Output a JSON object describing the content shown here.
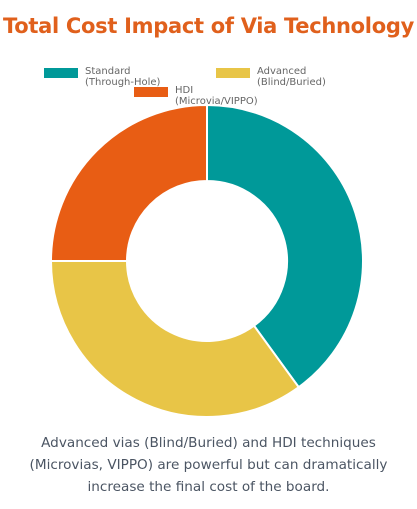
{
  "title": "Total Cost Impact of Via Technology",
  "colors": {
    "title": "#e0601c",
    "slice_border": "#ffffff"
  },
  "legend": {
    "items": [
      {
        "label": "Standard (Through-Hole)",
        "color": "#009999"
      },
      {
        "label": "Advanced (Blind/Buried)",
        "color": "#e8c547"
      },
      {
        "label": "HDI (Microvia/VIPPO)",
        "color": "#e85d14"
      }
    ],
    "placement": "top"
  },
  "chart_data": {
    "type": "pie",
    "variant": "doughnut",
    "title": "Total Cost Impact of Via Technology",
    "labels": [
      "Standard (Through-Hole)",
      "Advanced (Blind/Buried)",
      "HDI (Microvia/VIPPO)"
    ],
    "values": [
      40,
      35,
      25
    ],
    "colors": [
      "#009999",
      "#e8c547",
      "#e85d14"
    ],
    "start_angle_deg": 0
  },
  "caption": "Advanced vias (Blind/Buried) and HDI techniques (Microvias, VIPPO) are powerful but can dramatically increase the final cost of the board."
}
